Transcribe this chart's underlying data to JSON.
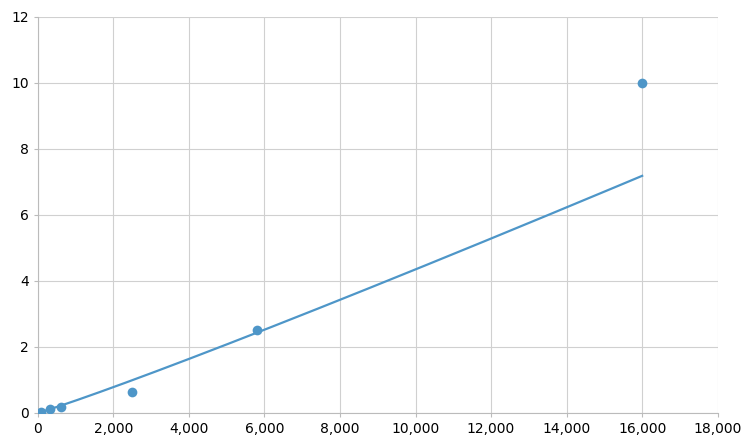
{
  "x_data": [
    78,
    313,
    625,
    2500,
    5800,
    16000
  ],
  "y_data": [
    0.03,
    0.12,
    0.18,
    0.62,
    2.52,
    10.0
  ],
  "line_color": "#4E96C8",
  "marker_color": "#4E96C8",
  "marker_size": 7,
  "line_width": 1.6,
  "xlim": [
    0,
    18000
  ],
  "ylim": [
    0,
    12
  ],
  "xticks": [
    0,
    2000,
    4000,
    6000,
    8000,
    10000,
    12000,
    14000,
    16000,
    18000
  ],
  "yticks": [
    0,
    2,
    4,
    6,
    8,
    10,
    12
  ],
  "grid_color": "#D0D0D0",
  "background_color": "#FFFFFF",
  "tick_label_fontsize": 10
}
